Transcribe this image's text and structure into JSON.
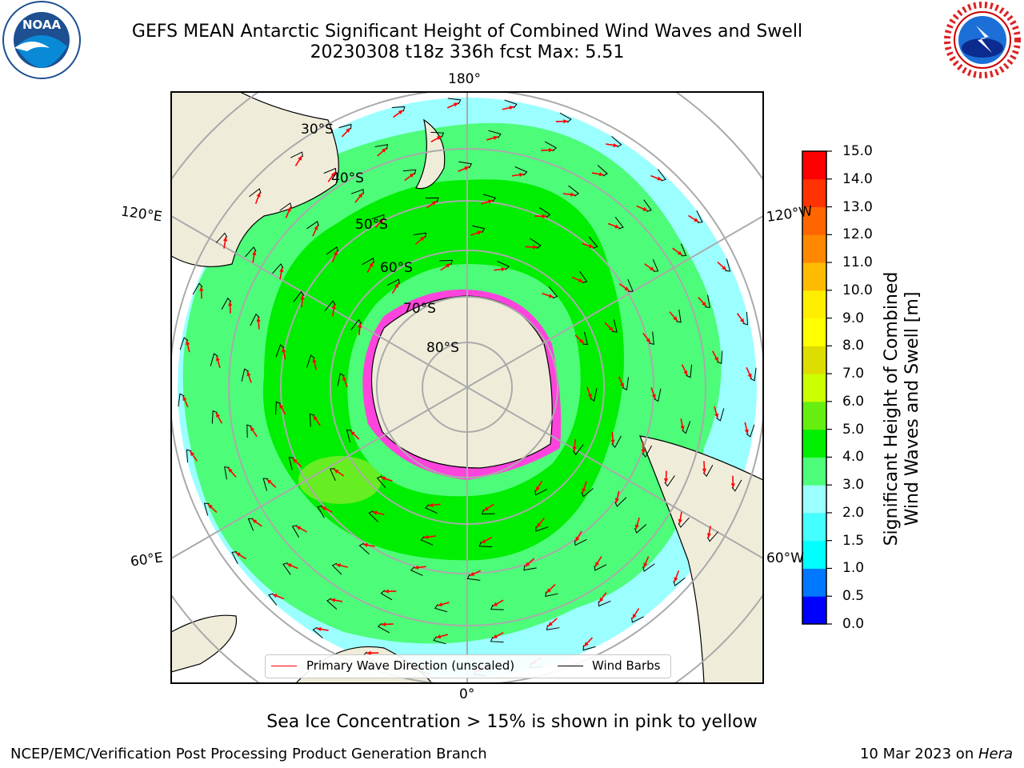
{
  "header": {
    "title_line1": "GEFS MEAN Antarctic Significant Height of Combined Wind Waves and Swell",
    "title_line2": "20230308 t18z 336h fcst   Max: 5.51"
  },
  "logos": {
    "left": {
      "name": "NOAA",
      "text": "NOAA",
      "ring_text": "NATIONAL OCEANIC AND ATMOSPHERIC ADMINISTRATION · U.S. DEPARTMENT OF COMMERCE"
    },
    "right": {
      "name": "National Weather Service",
      "ring_text": "NATIONAL WEATHER SERVICE"
    }
  },
  "map": {
    "projection": "south-polar-stereographic",
    "longitude_labels": {
      "top": "180°",
      "upper_left": "120°E",
      "upper_right": "120°W",
      "lower_left": "60°E",
      "lower_right": "60°W",
      "bottom": "0°"
    },
    "latitude_labels": [
      "30°S",
      "40°S",
      "50°S",
      "60°S",
      "70°S",
      "80°S"
    ],
    "colors": {
      "ocean_low": "#9bffff",
      "ocean_mid": "#4dfc79",
      "ocean_high": "#00ee00",
      "band_5_6": "#66ee22",
      "land": "#efedda",
      "sea_ice": "#ff44dd",
      "wave_arrow": "#ff0000",
      "wind_barb": "#000000"
    }
  },
  "legend": {
    "items": [
      {
        "label": "Primary Wave Direction (unscaled)",
        "color": "#ff0000"
      },
      {
        "label": "Wind Barbs",
        "color": "#000000"
      }
    ]
  },
  "colorbar": {
    "label": "Significant Height of Combined Wind Waves and Swell [m]",
    "ticks": [
      "0.0",
      "0.5",
      "1.0",
      "1.5",
      "2.0",
      "3.0",
      "4.0",
      "5.0",
      "6.0",
      "7.0",
      "8.0",
      "9.0",
      "10.0",
      "11.0",
      "12.0",
      "13.0",
      "14.0",
      "15.0"
    ],
    "colors": [
      "#0000ff",
      "#0077ff",
      "#00ffff",
      "#44ffff",
      "#99ffff",
      "#4dfc79",
      "#00ee00",
      "#66ee11",
      "#ccff00",
      "#dddd00",
      "#ffff00",
      "#ffee00",
      "#ffbb00",
      "#ff8800",
      "#ff6600",
      "#ff3300",
      "#ff0000"
    ]
  },
  "footnote": "Sea Ice Concentration > 15% is shown in pink to yellow",
  "credits": {
    "left": "NCEP/EMC/Verification Post Processing Product Generation Branch",
    "right_prefix": "10 Mar 2023 on ",
    "right_host": "Hera"
  }
}
